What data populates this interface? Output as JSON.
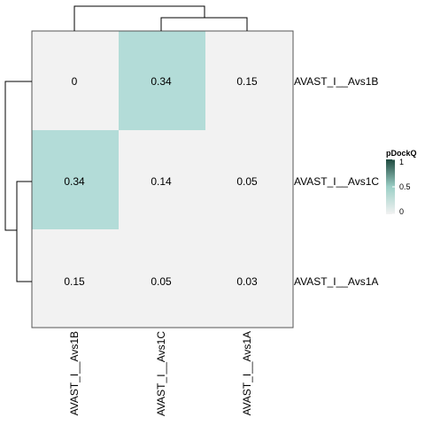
{
  "chart_data": {
    "type": "heatmap",
    "row_labels": [
      "AVAST_I__Avs1B",
      "AVAST_I__Avs1C",
      "AVAST_I__Avs1A"
    ],
    "col_labels": [
      "AVAST_I__Avs1B",
      "AVAST_I__Avs1C",
      "AVAST_I__Avs1A"
    ],
    "cell_labels": [
      [
        "0",
        "0.34",
        "0.15"
      ],
      [
        "0.34",
        "0.14",
        "0.05"
      ],
      [
        "0.15",
        "0.05",
        "0.03"
      ]
    ],
    "values": [
      [
        0,
        0.34,
        0.15
      ],
      [
        0.34,
        0.14,
        0.05
      ],
      [
        0.15,
        0.05,
        0.03
      ]
    ],
    "highlighted_cells": [
      [
        0,
        1
      ],
      [
        1,
        0
      ]
    ],
    "colors": {
      "low": "#f2f2f2",
      "highlight": "#b3dcd8",
      "mid": "#9ccfc6",
      "high": "#1f4a3f",
      "border": "#555555"
    },
    "legend": {
      "title": "pDockQ",
      "ticks": [
        "1",
        "0.5",
        "0"
      ],
      "tick_values": [
        1,
        0.5,
        0
      ],
      "placement": "right"
    },
    "dendrogram": {
      "rows": "left",
      "columns": "top"
    }
  }
}
